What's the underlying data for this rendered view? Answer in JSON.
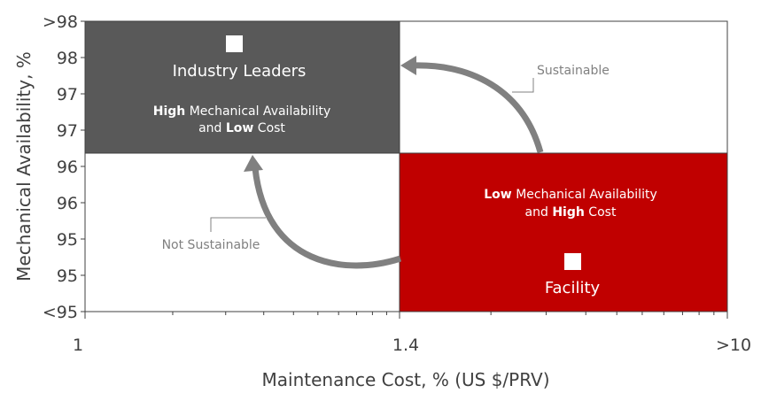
{
  "chart_data": {
    "type": "quadrant",
    "xlabel": "Maintenance Cost, % (US $/PRV)",
    "ylabel": "Mechanical Availability, %",
    "x_ticks": [
      "1",
      "1.4",
      ">10"
    ],
    "y_ticks": [
      ">98",
      "98",
      "97",
      "97",
      "96",
      "96",
      "95",
      "95",
      "<95"
    ],
    "quadrants": {
      "top_left": {
        "title": "Industry Leaders",
        "desc_line1_bold": "High",
        "desc_line1_rest": " Mechanical Availability",
        "desc_line2_pre": "and ",
        "desc_line2_bold": "Low",
        "desc_line2_post": " Cost",
        "color": "#595959"
      },
      "bottom_right": {
        "title": "Facility",
        "desc_line1_bold": "Low",
        "desc_line1_rest": " Mechanical Availability",
        "desc_line2_pre": "and ",
        "desc_line2_bold": "High",
        "desc_line2_post": " Cost",
        "color": "#c00000"
      }
    },
    "annotations": {
      "sustainable": "Sustainable",
      "not_sustainable": "Not Sustainable"
    },
    "colors": {
      "arrow": "#808080",
      "axis_text": "#404040",
      "grid": "#404040"
    }
  }
}
